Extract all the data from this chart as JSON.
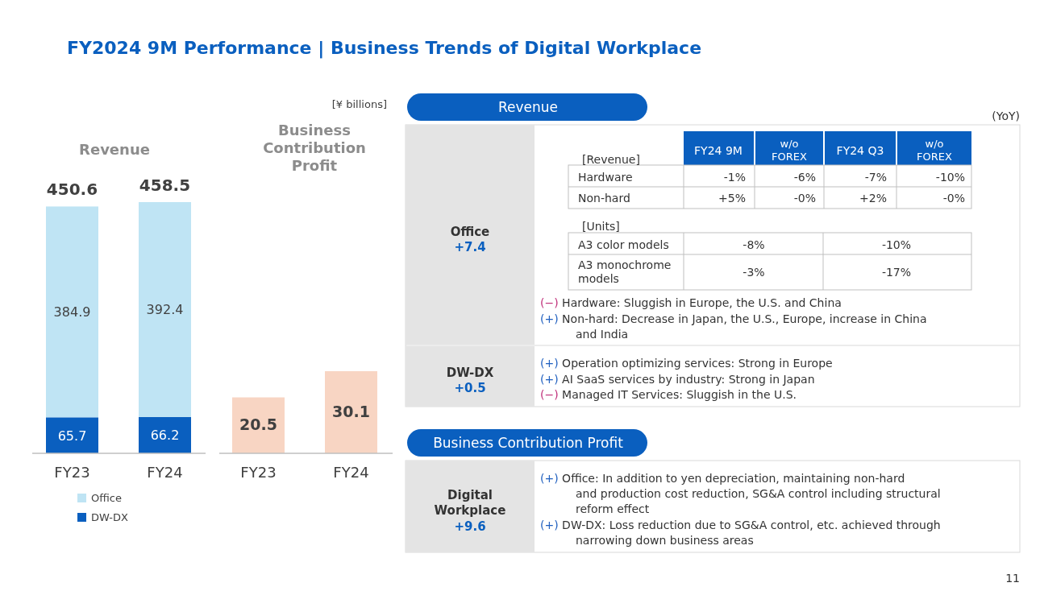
{
  "chart_data": [
    {
      "type": "bar",
      "title": "Revenue",
      "categories": [
        "FY23",
        "FY24"
      ],
      "stacked": true,
      "data_labels": true,
      "totals": [
        "450.6",
        "458.5"
      ],
      "legend": "bottom",
      "series": [
        {
          "name": "DW-DX",
          "color": "#0a5fbf",
          "values": [
            65.7,
            66.2
          ]
        },
        {
          "name": "Office",
          "color": "#bfe4f4",
          "values": [
            384.9,
            392.4
          ]
        }
      ]
    },
    {
      "type": "bar",
      "title": "Business Contribution Profit",
      "categories": [
        "FY23",
        "FY24"
      ],
      "values": [
        20.5,
        30.1
      ],
      "color": "#f8d5c3",
      "data_labels": true,
      "annotations": [
        "[¥ billions]"
      ]
    },
    {
      "type": "other",
      "title": "FY2024 9M Performance | Business Trends of Digital Workplace",
      "annotations": [
        "Revenue",
        "(YoY)",
        "Office",
        "+7.4",
        "[Revenue]",
        "FY24 9M",
        "w/o FOREX",
        "FY24 Q3",
        "w/o FOREX",
        "Hardware",
        "-1%",
        "-6%",
        "-7%",
        "-10%",
        "Non-hard",
        "+5%",
        "-0%",
        "+2%",
        "-0%",
        "[Units]",
        "A3 color models",
        "-8%",
        "-10%",
        "A3 monochrome models",
        "-3%",
        "-17%",
        "(−) Hardware: Sluggish in Europe, the U.S. and China",
        "(+) Non-hard: Decrease in Japan, the U.S., Europe, increase in China and India",
        "DW-DX",
        "+0.5",
        "(+) Operation optimizing services: Strong in Europe",
        "(+) AI SaaS services by industry: Strong in Japan",
        "(−) Managed IT Services: Sluggish in the U.S.",
        "Business Contribution Profit",
        "Digital Workplace",
        "+9.6",
        "(+) Office: In addition to yen depreciation, maintaining non-hard and production cost reduction, SG&A control including structural reform effect",
        "(+) DW-DX: Loss reduction due to SG&A control, etc. achieved through narrowing down business areas",
        "11"
      ]
    }
  ]
}
